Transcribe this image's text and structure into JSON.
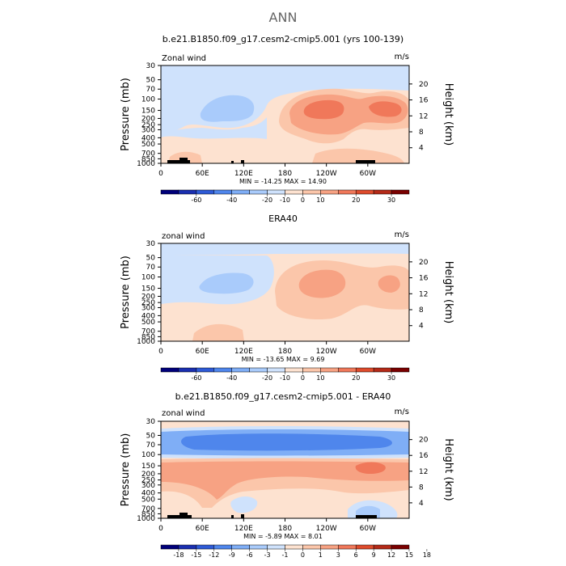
{
  "figure": {
    "suptitle": "ANN",
    "panels": [
      {
        "title": "b.e21.B1850.f09_g17.cesm2-cmip5.001 (yrs 100-139)",
        "left_label": "Zonal wind",
        "right_label": "m/s",
        "stats": "MIN = -14.25   MAX = 14.90",
        "colorbar_labels": [
          "-60",
          "-40",
          "-20",
          "-10",
          "0",
          "10",
          "20",
          "30"
        ]
      },
      {
        "title": "ERA40",
        "left_label": "zonal wind",
        "right_label": "m/s",
        "stats": "MIN = -13.65   MAX = 9.69",
        "colorbar_labels": [
          "-60",
          "-40",
          "-20",
          "-10",
          "0",
          "10",
          "20",
          "30"
        ]
      },
      {
        "title": "b.e21.B1850.f09_g17.cesm2-cmip5.001 - ERA40",
        "left_label": "zonal wind",
        "right_label": "m/s",
        "stats": "MIN = -5.89   MAX = 8.01",
        "colorbar_labels": [
          "-18",
          "-15",
          "-12",
          "-9",
          "-6",
          "-3",
          "-1",
          "0",
          "1",
          "3",
          "6",
          "9",
          "12",
          "15",
          "18"
        ]
      }
    ]
  },
  "chart_data": [
    {
      "type": "heatmap",
      "title": "b.e21.B1850.f09_g17.cesm2-cmip5.001 (yrs 100-139)",
      "variable": "Zonal wind",
      "units": "m/s",
      "xlabel": "",
      "ylabel": "Pressure (mb)",
      "ylabel_right": "Height (km)",
      "x_ticks": [
        "0",
        "60E",
        "120E",
        "180",
        "120W",
        "60W"
      ],
      "y_ticks": [
        "30",
        "50",
        "70",
        "100",
        "150",
        "200",
        "250",
        "300",
        "400",
        "500",
        "700",
        "850",
        "1000"
      ],
      "y_ticks_right": [
        "20",
        "16",
        "12",
        "8",
        "4"
      ],
      "colorbar": [
        "#00007a",
        "#1a2fb0",
        "#2e5ad6",
        "#4f86ec",
        "#7faef6",
        "#a9cbfb",
        "#cfe2fc",
        "#fde2d0",
        "#fbc6aa",
        "#f7a283",
        "#f0785a",
        "#de4b2c",
        "#b42a18",
        "#7a0000"
      ],
      "min": -14.25,
      "max": 14.9,
      "colors": {
        "weak_easterly": "#cfe2fc",
        "weak_westerly": "#fde2d0"
      },
      "features": [
        {
          "level": "-10 to -20",
          "lon": [
            75,
            140
          ],
          "pressure_mb": [
            80,
            200
          ],
          "label": "tropical easterly minimum"
        },
        {
          "level": "10 to 20",
          "lon": [
            150,
            320
          ],
          "pressure_mb": [
            100,
            250
          ],
          "label": "subtropical westerly jet maximum"
        }
      ]
    },
    {
      "type": "heatmap",
      "title": "ERA40",
      "variable": "zonal wind",
      "units": "m/s",
      "ylabel": "Pressure (mb)",
      "ylabel_right": "Height (km)",
      "x_ticks": [
        "0",
        "60E",
        "120E",
        "180",
        "120W",
        "60W"
      ],
      "y_ticks": [
        "30",
        "50",
        "70",
        "100",
        "150",
        "200",
        "250",
        "300",
        "400",
        "500",
        "700",
        "850",
        "1000"
      ],
      "y_ticks_right": [
        "20",
        "16",
        "12",
        "8",
        "4"
      ],
      "colorbar": [
        "#00007a",
        "#1a2fb0",
        "#2e5ad6",
        "#4f86ec",
        "#7faef6",
        "#a9cbfb",
        "#cfe2fc",
        "#fde2d0",
        "#fbc6aa",
        "#f7a283",
        "#f0785a",
        "#de4b2c",
        "#b42a18",
        "#7a0000"
      ],
      "min": -13.65,
      "max": 9.69,
      "features": [
        {
          "level": "-10 to -20",
          "lon": [
            70,
            140
          ],
          "pressure_mb": [
            90,
            220
          ],
          "label": "tropical easterly minimum"
        },
        {
          "level": "0 to 10",
          "lon": [
            160,
            300
          ],
          "pressure_mb": [
            100,
            300
          ],
          "label": "westerly maximum"
        }
      ]
    },
    {
      "type": "heatmap",
      "title": "b.e21.B1850.f09_g17.cesm2-cmip5.001 - ERA40",
      "variable": "zonal wind",
      "units": "m/s",
      "ylabel": "Pressure (mb)",
      "ylabel_right": "Height (km)",
      "x_ticks": [
        "0",
        "60E",
        "120E",
        "180",
        "120W",
        "60W"
      ],
      "y_ticks": [
        "30",
        "50",
        "70",
        "100",
        "150",
        "200",
        "250",
        "300",
        "400",
        "500",
        "700",
        "850",
        "1000"
      ],
      "y_ticks_right": [
        "20",
        "16",
        "12",
        "8",
        "4"
      ],
      "colorbar": [
        "#00007a",
        "#1a2fb0",
        "#2e5ad6",
        "#4f86ec",
        "#7faef6",
        "#a9cbfb",
        "#cfe2fc",
        "#fde2d0",
        "#fbc6aa",
        "#f7a283",
        "#f0785a",
        "#de4b2c",
        "#b42a18",
        "#7a0000"
      ],
      "min": -5.89,
      "max": 8.01,
      "features": [
        {
          "level": "-3 to -6",
          "lon": [
            0,
            360
          ],
          "pressure_mb": [
            40,
            80
          ],
          "label": "stratospheric easterly bias band"
        },
        {
          "level": "3 to 6",
          "lon": [
            0,
            360
          ],
          "pressure_mb": [
            120,
            400
          ],
          "label": "upper tropospheric westerly bias"
        }
      ]
    }
  ]
}
